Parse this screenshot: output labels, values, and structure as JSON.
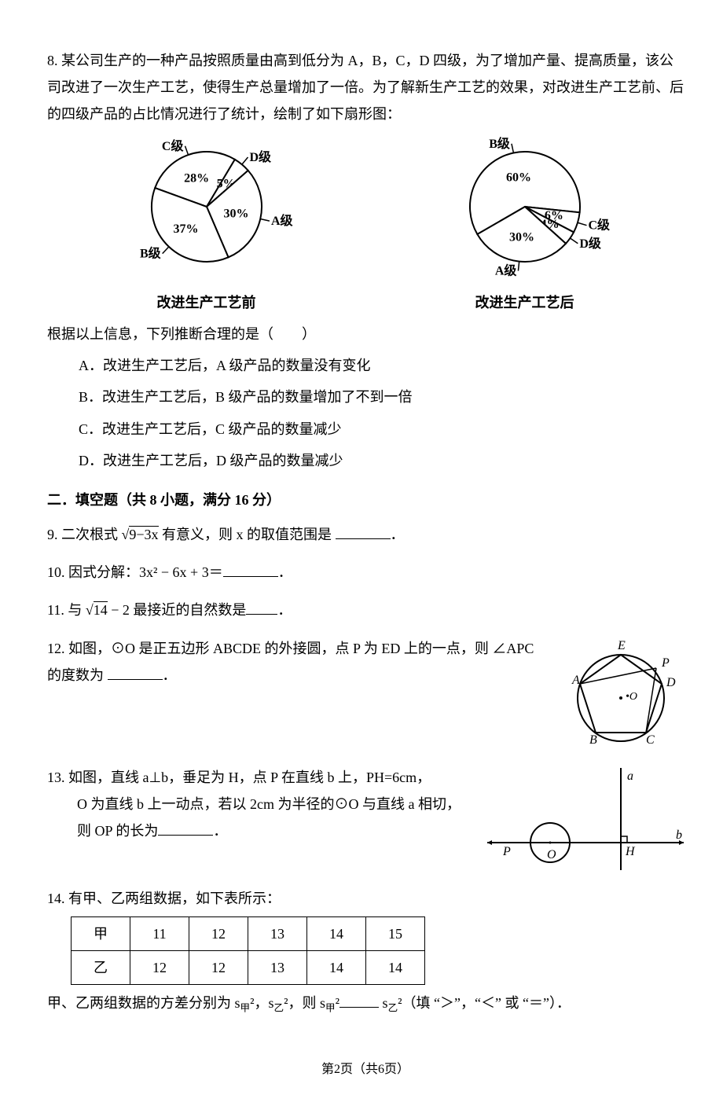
{
  "q8": {
    "number": "8.",
    "text": "某公司生产的一种产品按照质量由高到低分为 A，B，C，D 四级，为了增加产量、提高质量，该公司改进了一次生产工艺，使得生产总量增加了一倍。为了解新生产工艺的效果，对改进生产工艺前、后的四级产品的占比情况进行了统计，绘制了如下扇形图：",
    "chart_before": {
      "caption": "改进生产工艺前",
      "slices": [
        {
          "label": "C级",
          "value": 28,
          "pct": "28%",
          "color": "#ffffff"
        },
        {
          "label": "D级",
          "value": 5,
          "pct": "5%",
          "color": "#ffffff"
        },
        {
          "label": "A级",
          "value": 30,
          "pct": "30%",
          "color": "#ffffff"
        },
        {
          "label": "B级",
          "value": 37,
          "pct": "37%",
          "color": "#ffffff"
        }
      ],
      "stroke": "#000000",
      "start_angle": 200
    },
    "chart_after": {
      "caption": "改进生产工艺后",
      "slices": [
        {
          "label": "B级",
          "value": 60,
          "pct": "60%",
          "color": "#ffffff"
        },
        {
          "label": "C级",
          "value": 6,
          "pct": "6%",
          "color": "#ffffff"
        },
        {
          "label": "D级",
          "value": 4,
          "pct": "4%",
          "color": "#ffffff"
        },
        {
          "label": "A级",
          "value": 30,
          "pct": "30%",
          "color": "#ffffff"
        }
      ],
      "stroke": "#000000",
      "start_angle": 150
    },
    "stem": "根据以上信息，下列推断合理的是（　　）",
    "options": {
      "A": "A．改进生产工艺后，A 级产品的数量没有变化",
      "B": "B．改进生产工艺后，B 级产品的数量增加了不到一倍",
      "C": "C．改进生产工艺后，C 级产品的数量减少",
      "D": "D．改进生产工艺后，D 级产品的数量减少"
    }
  },
  "section2_title": "二．填空题（共 8 小题，满分 16 分）",
  "q9": {
    "number": "9.",
    "text_before": "二次根式",
    "radicand": "9−3x",
    "text_after": "有意义，则 x 的取值范围是",
    "tail": "．"
  },
  "q10": {
    "number": "10.",
    "text": "因式分解：3x² − 6x + 3＝",
    "tail": "．"
  },
  "q11": {
    "number": "11.",
    "text_before": "与",
    "radicand": "14",
    "text_mid": "− 2 最接近的自然数是",
    "tail": "．"
  },
  "q12": {
    "number": "12.",
    "text": "如图，⊙O 是正五边形 ABCDE 的外接圆，点 P 为 ED 上的一点，则 ∠APC 的度数为",
    "tail": "．",
    "pentagon": {
      "circle_color": "#000000",
      "labels": [
        "A",
        "B",
        "C",
        "D",
        "E",
        "P",
        "O"
      ],
      "o_label": "O"
    }
  },
  "q13": {
    "number": "13.",
    "line1": "如图，直线 a⊥b，垂足为 H，点 P 在直线 b 上，PH=6cm，",
    "line2": "O 为直线 b 上一动点，若以 2cm 为半径的⊙O 与直线 a 相切，",
    "line3_before": "则 OP 的长为",
    "tail": "．",
    "fig": {
      "labels": {
        "a": "a",
        "b": "b",
        "P": "P",
        "O": "O",
        "H": "H"
      }
    }
  },
  "q14": {
    "number": "14.",
    "intro": "有甲、乙两组数据，如下表所示：",
    "table": {
      "rows": [
        [
          "甲",
          "11",
          "12",
          "13",
          "14",
          "15"
        ],
        [
          "乙",
          "12",
          "12",
          "13",
          "14",
          "14"
        ]
      ]
    },
    "tail_before": "甲、乙两组数据的方差分别为 s",
    "sub1": "甲",
    "sq": "²",
    "comma": "，s",
    "sub2": "乙",
    "then": "，则 s",
    "tail_after": "（填 “＞”，“＜” 或 “＝”）．"
  },
  "footer": "第2页（共6页）"
}
